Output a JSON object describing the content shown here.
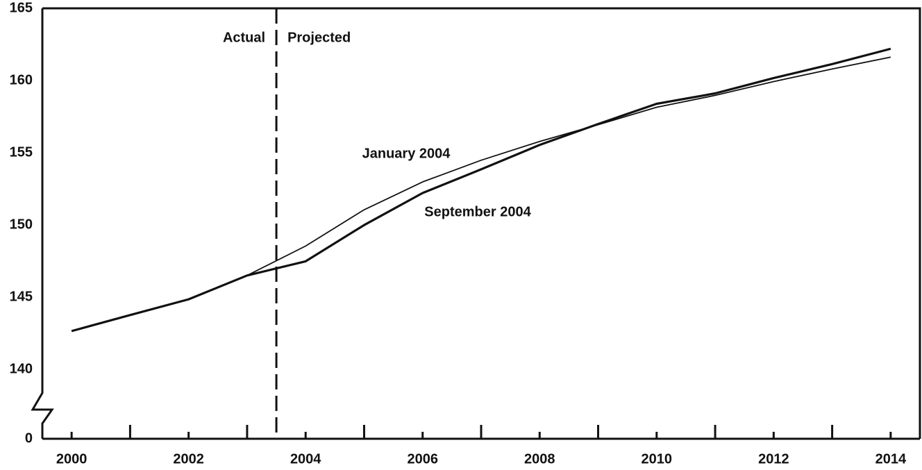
{
  "chart_data": {
    "type": "line",
    "x": [
      2000,
      2001,
      2002,
      2003,
      2004,
      2005,
      2006,
      2007,
      2008,
      2009,
      2010,
      2011,
      2012,
      2013,
      2014
    ],
    "series": [
      {
        "name": "January 2004",
        "color": "#111111",
        "values": [
          142.65,
          143.76,
          144.87,
          146.5,
          148.54,
          151.05,
          152.98,
          154.48,
          155.78,
          156.94,
          158.15,
          158.97,
          159.93,
          160.8,
          161.62
        ]
      },
      {
        "name": "September 2004",
        "color": "#111111",
        "values": [
          142.65,
          143.76,
          144.85,
          146.5,
          147.48,
          149.99,
          152.21,
          153.85,
          155.54,
          156.99,
          158.39,
          159.11,
          160.17,
          161.14,
          162.2
        ]
      }
    ],
    "xlim": [
      1999.5,
      2014.5
    ],
    "xticks": [
      2000,
      2002,
      2004,
      2006,
      2008,
      2010,
      2012,
      2014
    ],
    "minor_xticks": [
      2001,
      2003,
      2005,
      2007,
      2009,
      2011,
      2013
    ],
    "ylim": [
      0,
      165
    ],
    "yticks": [
      0,
      140,
      145,
      150,
      155,
      160,
      165
    ],
    "axis_break": true,
    "divider": {
      "x": 2003.5,
      "left_label": "Actual",
      "right_label": "Projected"
    }
  }
}
